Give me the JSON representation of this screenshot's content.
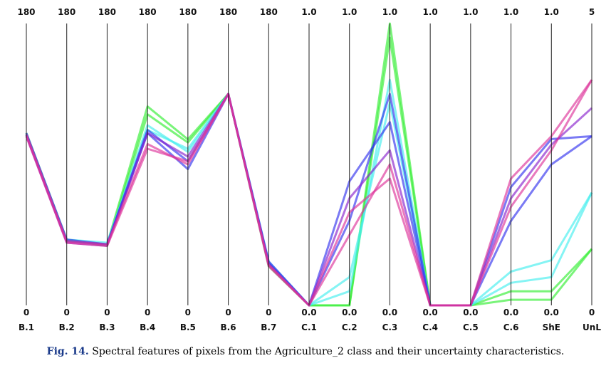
{
  "chart_data": {
    "type": "parallel-coordinates",
    "axes": [
      {
        "name": "B.1",
        "max": "180",
        "min": "0"
      },
      {
        "name": "B.2",
        "max": "180",
        "min": "0"
      },
      {
        "name": "B.3",
        "max": "180",
        "min": "0"
      },
      {
        "name": "B.4",
        "max": "180",
        "min": "0"
      },
      {
        "name": "B.5",
        "max": "180",
        "min": "0"
      },
      {
        "name": "B.6",
        "max": "180",
        "min": "0"
      },
      {
        "name": "B.7",
        "max": "180",
        "min": "0"
      },
      {
        "name": "C.1",
        "max": "1.0",
        "min": "0.0"
      },
      {
        "name": "C.2",
        "max": "1.0",
        "min": "0.0"
      },
      {
        "name": "C.3",
        "max": "1.0",
        "min": "0.0"
      },
      {
        "name": "C.4",
        "max": "1.0",
        "min": "0.0"
      },
      {
        "name": "C.5",
        "max": "1.0",
        "min": "0.0"
      },
      {
        "name": "C.6",
        "max": "1.0",
        "min": "0.0"
      },
      {
        "name": "ShE",
        "max": "1.0",
        "min": "0.0"
      },
      {
        "name": "UnL",
        "max": "5",
        "min": "0"
      }
    ],
    "axis_max_values": [
      180,
      180,
      180,
      180,
      180,
      180,
      180,
      1,
      1,
      1,
      1,
      1,
      1,
      1,
      5
    ],
    "series": [
      {
        "color": "#33ee33",
        "values": [
          109,
          41,
          39,
          127,
          106,
          135,
          25,
          0.0,
          0.0,
          1.0,
          0.0,
          0.0,
          0.05,
          0.05,
          1.0
        ]
      },
      {
        "color": "#33ee33",
        "values": [
          110,
          42,
          38,
          122,
          104,
          135,
          26,
          0.0,
          0.0,
          0.95,
          0.0,
          0.0,
          0.02,
          0.02,
          1.0
        ]
      },
      {
        "color": "#44eeee",
        "values": [
          109,
          41,
          39,
          115,
          98,
          135,
          27,
          0.0,
          0.05,
          0.8,
          0.0,
          0.0,
          0.08,
          0.1,
          2.0
        ]
      },
      {
        "color": "#44eeee",
        "values": [
          109,
          42,
          40,
          112,
          100,
          135,
          28,
          0.0,
          0.1,
          0.72,
          0.0,
          0.0,
          0.12,
          0.16,
          2.0
        ]
      },
      {
        "color": "#3333ee",
        "values": [
          110,
          42,
          39,
          112,
          92,
          135,
          28,
          0.0,
          0.3,
          0.75,
          0.0,
          0.0,
          0.3,
          0.5,
          3.0
        ]
      },
      {
        "color": "#3333ee",
        "values": [
          109,
          41,
          39,
          110,
          87,
          135,
          27,
          0.0,
          0.44,
          0.65,
          0.0,
          0.0,
          0.42,
          0.59,
          3.0
        ]
      },
      {
        "color": "#8822cc",
        "values": [
          108,
          40,
          38,
          110,
          95,
          135,
          26,
          0.0,
          0.38,
          0.55,
          0.0,
          0.0,
          0.38,
          0.57,
          3.5
        ]
      },
      {
        "color": "#dd3399",
        "values": [
          109,
          41,
          39,
          103,
          90,
          135,
          25,
          0.0,
          0.25,
          0.5,
          0.0,
          0.0,
          0.45,
          0.6,
          4.0
        ]
      },
      {
        "color": "#dd3399",
        "values": [
          108,
          40,
          38,
          100,
          92,
          135,
          26,
          0.0,
          0.33,
          0.45,
          0.0,
          0.0,
          0.35,
          0.55,
          4.0
        ]
      }
    ]
  },
  "caption": {
    "label": "Fig. 14.",
    "text": "Spectral features of pixels from the Agriculture_2 class and their uncertainty characteristics."
  }
}
